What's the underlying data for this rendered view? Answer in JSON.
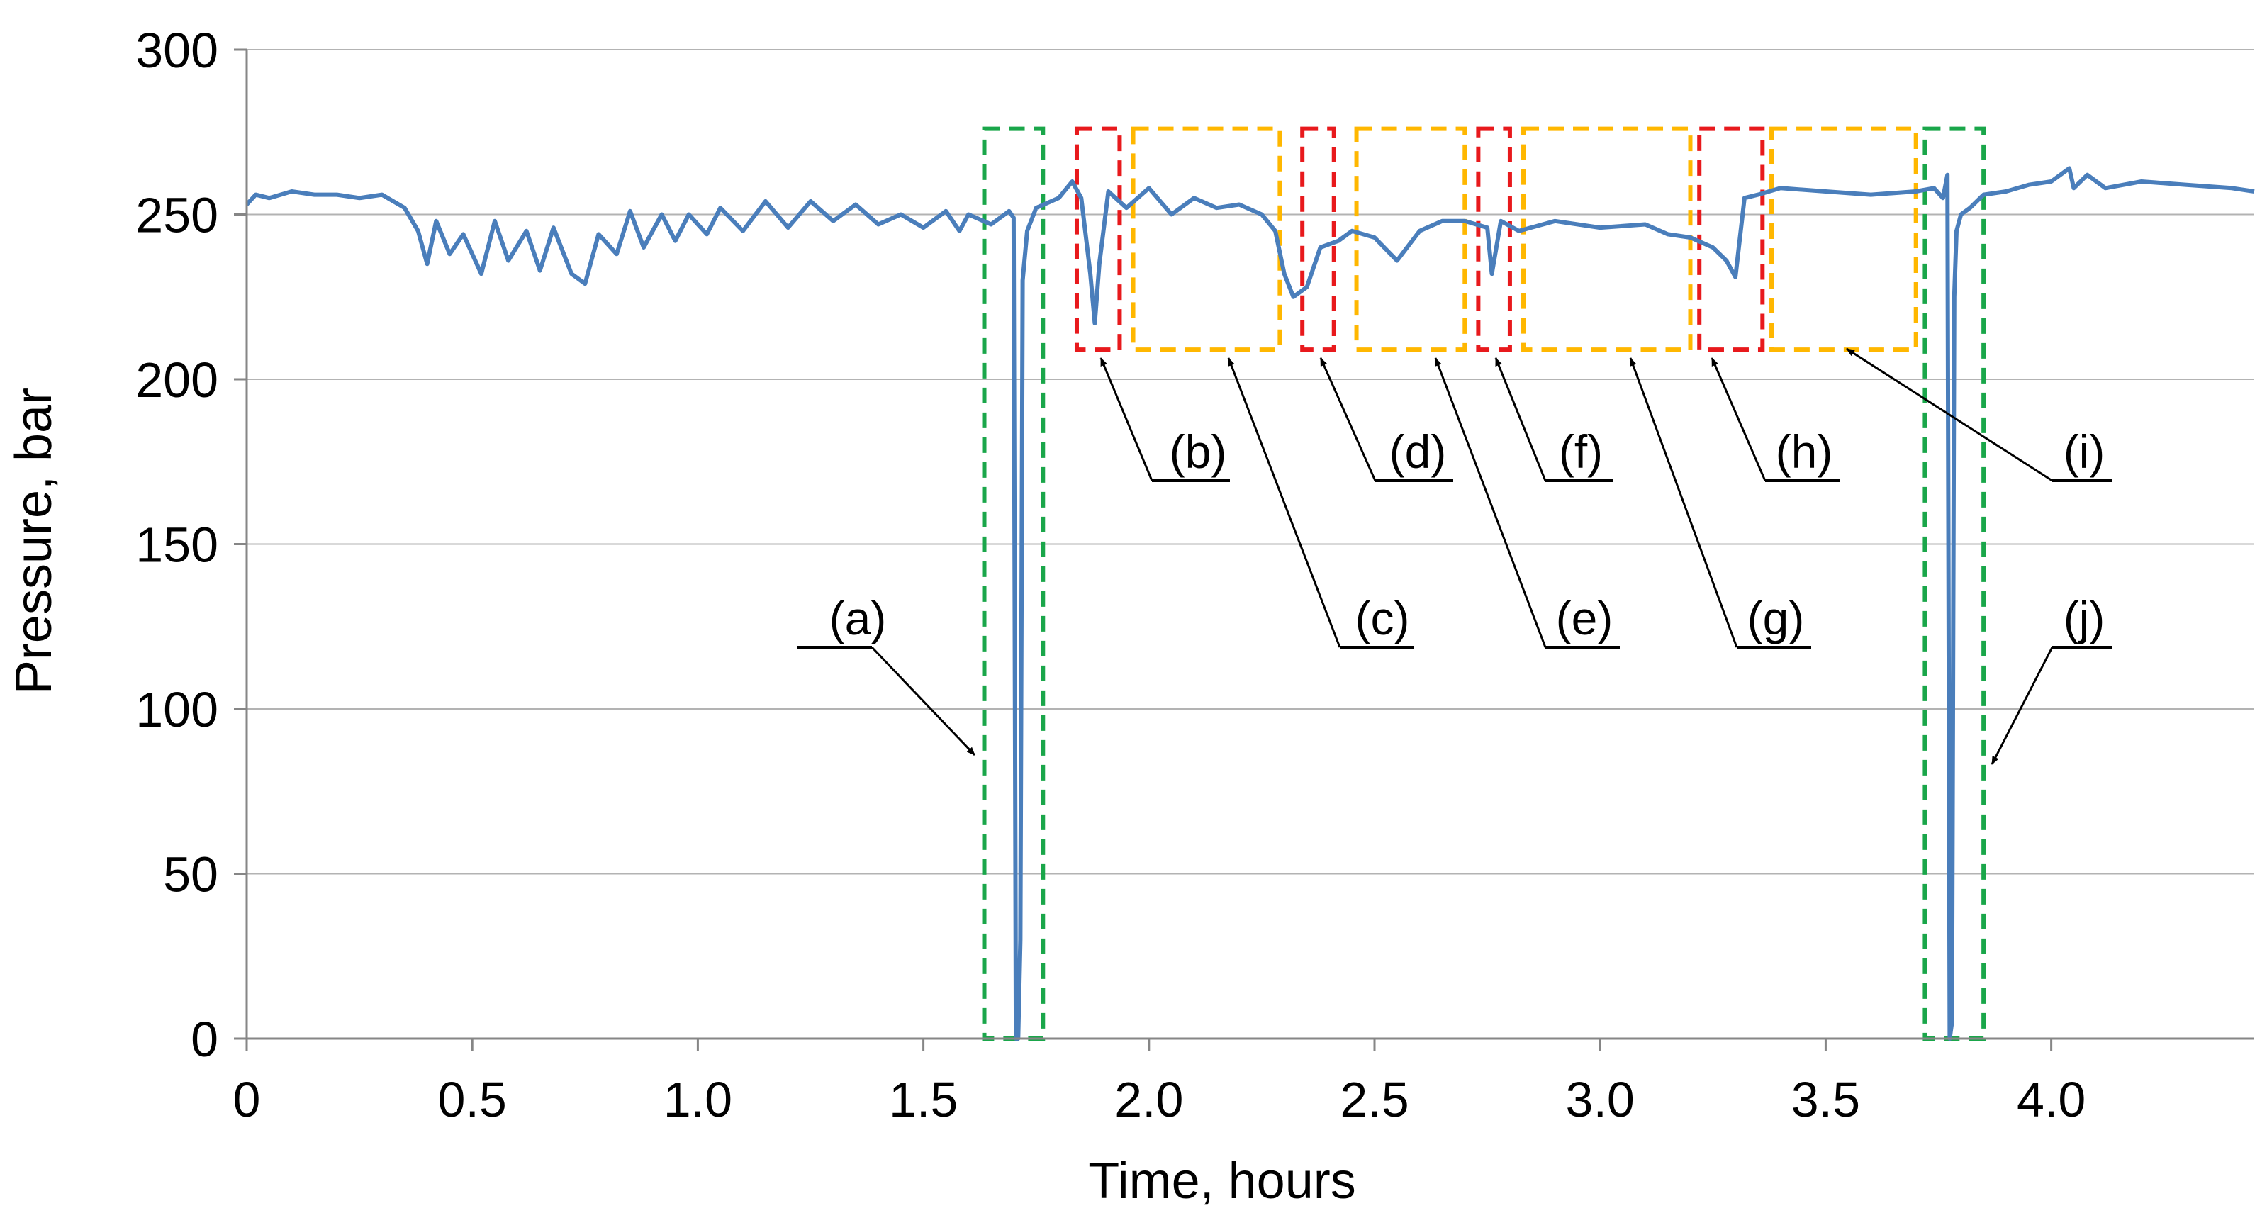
{
  "chart_data": {
    "type": "line",
    "title": "",
    "xlabel": "Time, hours",
    "ylabel": "Pressure, bar",
    "xlim": [
      0,
      4.45
    ],
    "ylim": [
      0,
      300
    ],
    "grid": "horizontal",
    "x_ticks": [
      {
        "value": 0,
        "label": "0"
      },
      {
        "value": 0.5,
        "label": "0.5"
      },
      {
        "value": 1.0,
        "label": "1.0"
      },
      {
        "value": 1.5,
        "label": "1.5"
      },
      {
        "value": 2.0,
        "label": "2.0"
      },
      {
        "value": 2.5,
        "label": "2.5"
      },
      {
        "value": 3.0,
        "label": "3.0"
      },
      {
        "value": 3.5,
        "label": "3.5"
      },
      {
        "value": 4.0,
        "label": "4.0"
      }
    ],
    "y_ticks": [
      {
        "value": 0,
        "label": "0"
      },
      {
        "value": 50,
        "label": "50"
      },
      {
        "value": 100,
        "label": "100"
      },
      {
        "value": 150,
        "label": "150"
      },
      {
        "value": 200,
        "label": "200"
      },
      {
        "value": 250,
        "label": "250"
      },
      {
        "value": 300,
        "label": "300"
      }
    ],
    "series": [
      {
        "name": "Pressure",
        "color": "#4a7ebb",
        "x": [
          0,
          0.02,
          0.05,
          0.1,
          0.15,
          0.2,
          0.25,
          0.3,
          0.35,
          0.38,
          0.4,
          0.42,
          0.45,
          0.48,
          0.52,
          0.55,
          0.58,
          0.62,
          0.65,
          0.68,
          0.72,
          0.75,
          0.78,
          0.82,
          0.85,
          0.88,
          0.92,
          0.95,
          0.98,
          1.02,
          1.05,
          1.1,
          1.15,
          1.2,
          1.25,
          1.3,
          1.35,
          1.4,
          1.45,
          1.5,
          1.55,
          1.58,
          1.6,
          1.65,
          1.68,
          1.69,
          1.7,
          1.705,
          1.71,
          1.715,
          1.72,
          1.73,
          1.75,
          1.8,
          1.83,
          1.85,
          1.87,
          1.88,
          1.89,
          1.91,
          1.95,
          2.0,
          2.05,
          2.1,
          2.15,
          2.2,
          2.25,
          2.28,
          2.3,
          2.32,
          2.35,
          2.38,
          2.42,
          2.45,
          2.5,
          2.55,
          2.6,
          2.65,
          2.7,
          2.75,
          2.76,
          2.78,
          2.82,
          2.9,
          3.0,
          3.1,
          3.15,
          3.2,
          3.25,
          3.28,
          3.3,
          3.32,
          3.35,
          3.4,
          3.5,
          3.6,
          3.7,
          3.74,
          3.76,
          3.77,
          3.775,
          3.78,
          3.785,
          3.79,
          3.8,
          3.82,
          3.85,
          3.9,
          3.95,
          4.0,
          4.04,
          4.05,
          4.08,
          4.12,
          4.2,
          4.3,
          4.4,
          4.45
        ],
        "values": [
          253,
          256,
          255,
          257,
          256,
          256,
          255,
          256,
          252,
          245,
          235,
          248,
          238,
          244,
          232,
          248,
          236,
          245,
          233,
          246,
          232,
          229,
          244,
          238,
          251,
          240,
          250,
          242,
          250,
          244,
          252,
          245,
          254,
          246,
          254,
          248,
          253,
          247,
          250,
          246,
          251,
          245,
          250,
          247,
          250,
          251,
          249,
          0,
          0,
          30,
          230,
          245,
          252,
          255,
          260,
          255,
          232,
          217,
          235,
          257,
          252,
          258,
          250,
          255,
          252,
          253,
          250,
          245,
          232,
          225,
          228,
          240,
          242,
          245,
          243,
          236,
          245,
          248,
          248,
          246,
          232,
          248,
          245,
          248,
          246,
          247,
          244,
          243,
          240,
          236,
          231,
          255,
          256,
          258,
          257,
          256,
          257,
          258,
          255,
          262,
          0,
          5,
          225,
          245,
          250,
          252,
          256,
          257,
          259,
          260,
          264,
          258,
          262,
          258,
          260,
          259,
          258,
          257
        ]
      }
    ],
    "boxes": [
      {
        "label": "(a)",
        "x0": 1.635,
        "x1": 1.765,
        "color": "#1aa64a"
      },
      {
        "label": "(b)",
        "x0": 1.84,
        "x1": 1.935,
        "color": "#e8191c"
      },
      {
        "label": "(c)",
        "x0": 1.965,
        "x1": 2.29,
        "color": "#ffb700"
      },
      {
        "label": "(d)",
        "x0": 2.34,
        "x1": 2.41,
        "color": "#e8191c"
      },
      {
        "label": "(e)",
        "x0": 2.46,
        "x1": 2.7,
        "color": "#ffb700"
      },
      {
        "label": "(f)",
        "x0": 2.73,
        "x1": 2.8,
        "color": "#e8191c"
      },
      {
        "label": "(g)",
        "x0": 2.83,
        "x1": 3.2,
        "color": "#ffb700"
      },
      {
        "label": "(h)",
        "x0": 3.22,
        "x1": 3.36,
        "color": "#e8191c"
      },
      {
        "label": "(i)",
        "x0": 3.38,
        "x1": 3.7,
        "color": "#ffb700"
      },
      {
        "label": "(j)",
        "x0": 3.72,
        "x1": 3.85,
        "color": "#1aa64a"
      }
    ]
  }
}
